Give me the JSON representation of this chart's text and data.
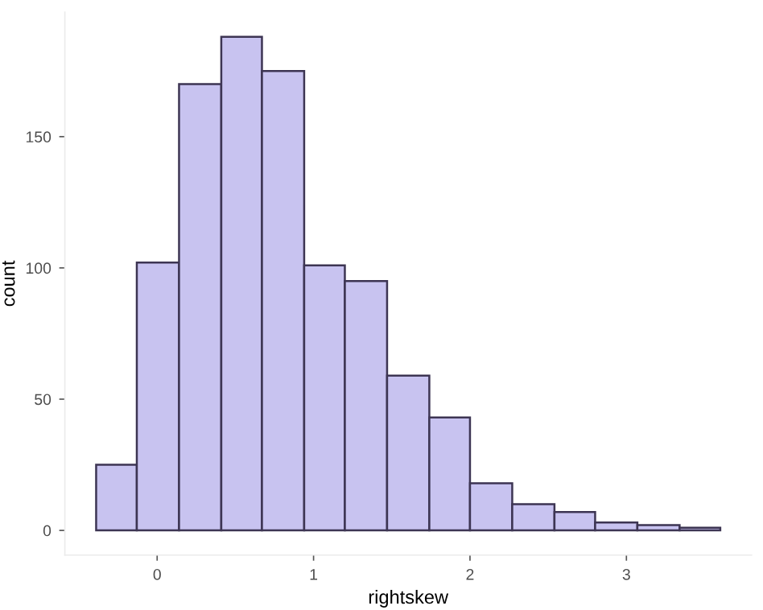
{
  "chart_data": {
    "type": "histogram",
    "xlabel": "rightskew",
    "ylabel": "count",
    "bins": [
      -0.39,
      -0.13,
      0.14,
      0.41,
      0.67,
      0.94,
      1.2,
      1.47,
      1.74,
      2.0,
      2.27,
      2.54,
      2.8,
      3.07,
      3.34,
      3.6
    ],
    "values": [
      25,
      102,
      170,
      188,
      175,
      101,
      95,
      59,
      43,
      18,
      10,
      7,
      3,
      2,
      1
    ],
    "color": "#c8c3f0",
    "xlim": [
      -0.59,
      3.8
    ],
    "ylim": [
      -9.4,
      197.4
    ],
    "xticks": [
      0,
      1,
      2,
      3
    ],
    "yticks": [
      0,
      50,
      100,
      150
    ],
    "grid": false
  }
}
